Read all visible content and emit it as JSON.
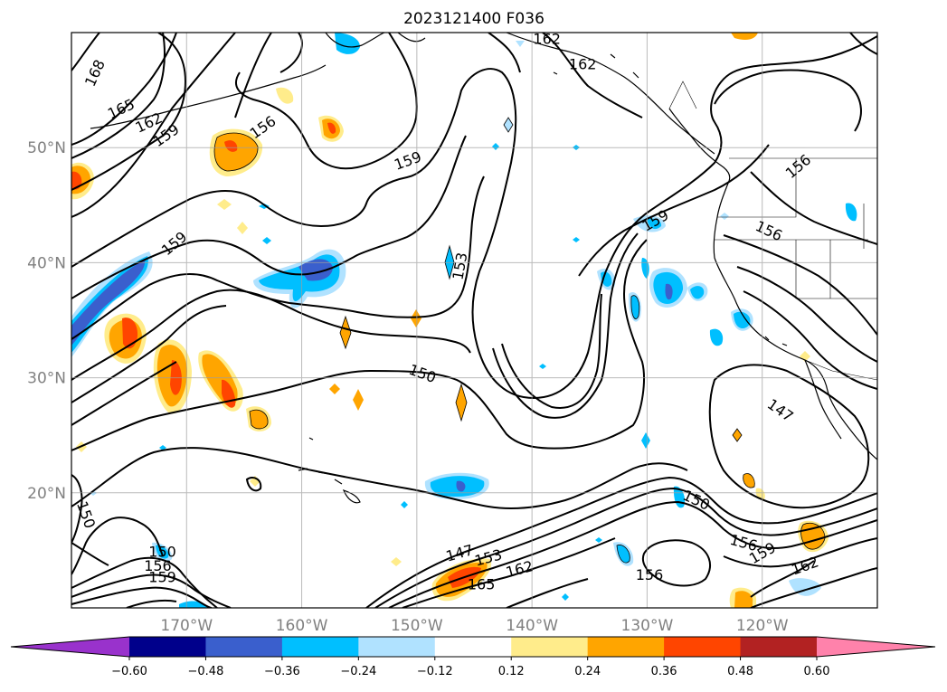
{
  "title": "2023121400 F036",
  "map": {
    "lat_labels": [
      "50°N",
      "40°N",
      "30°N",
      "20°N"
    ],
    "lon_labels": [
      "170°W",
      "160°W",
      "150°W",
      "140°W",
      "130°W",
      "120°W"
    ],
    "lat_values": [
      50,
      40,
      30,
      20
    ],
    "lon_values": [
      -170,
      -160,
      -150,
      -140,
      -130,
      -120
    ],
    "extent": {
      "lon_min": -180,
      "lon_max": -110,
      "lat_min": 10,
      "lat_max": 60
    },
    "gridlines": true
  },
  "contours": {
    "line_color": "#000000",
    "labels": [
      {
        "text": "168",
        "lon": -178,
        "lat": 56.5,
        "rot": -65
      },
      {
        "text": "165",
        "lon": -175.7,
        "lat": 53.4,
        "rot": -25
      },
      {
        "text": "162",
        "lon": -173.3,
        "lat": 52.2,
        "rot": -25
      },
      {
        "text": "159",
        "lon": -171.8,
        "lat": 51.1,
        "rot": -35
      },
      {
        "text": "156",
        "lon": -163.4,
        "lat": 51.8,
        "rot": -35
      },
      {
        "text": "159",
        "lon": -150.8,
        "lat": 48.9,
        "rot": -20
      },
      {
        "text": "162",
        "lon": -138.7,
        "lat": 59.5,
        "rot": 0
      },
      {
        "text": "162",
        "lon": -135.6,
        "lat": 57.3,
        "rot": 0
      },
      {
        "text": "156",
        "lon": -116.9,
        "lat": 48.4,
        "rot": -40
      },
      {
        "text": "159",
        "lon": -129.3,
        "lat": 43.7,
        "rot": -30
      },
      {
        "text": "156",
        "lon": -119.4,
        "lat": 42.8,
        "rot": 25
      },
      {
        "text": "159",
        "lon": -171.1,
        "lat": 41.7,
        "rot": -40
      },
      {
        "text": "153",
        "lon": -146.3,
        "lat": 39.7,
        "rot": -80
      },
      {
        "text": "150",
        "lon": -149.5,
        "lat": 30.4,
        "rot": 20
      },
      {
        "text": "147",
        "lon": -118.4,
        "lat": 27.2,
        "rot": 35
      },
      {
        "text": "150",
        "lon": -178.7,
        "lat": 18.1,
        "rot": 70
      },
      {
        "text": "150",
        "lon": -125.7,
        "lat": 19.4,
        "rot": 25
      },
      {
        "text": "156",
        "lon": -121.6,
        "lat": 15.7,
        "rot": 15
      },
      {
        "text": "159",
        "lon": -120,
        "lat": 14.8,
        "rot": -30
      },
      {
        "text": "162",
        "lon": -116.3,
        "lat": 13.7,
        "rot": -20
      },
      {
        "text": "147",
        "lon": -146.3,
        "lat": 14.8,
        "rot": -15
      },
      {
        "text": "153",
        "lon": -143.8,
        "lat": 14.4,
        "rot": -15
      },
      {
        "text": "162",
        "lon": -141.1,
        "lat": 13.4,
        "rot": -15
      },
      {
        "text": "165",
        "lon": -144.4,
        "lat": 12.1,
        "rot": 0
      },
      {
        "text": "156",
        "lon": -129.8,
        "lat": 12.9,
        "rot": 0
      },
      {
        "text": "150",
        "lon": -172.1,
        "lat": 14.9,
        "rot": 0
      },
      {
        "text": "156",
        "lon": -172.5,
        "lat": 13.7,
        "rot": 0
      },
      {
        "text": "159",
        "lon": -172.1,
        "lat": 12.7,
        "rot": 0
      }
    ]
  },
  "colorbar": {
    "bounds": [
      -0.72,
      -0.6,
      -0.48,
      -0.36,
      -0.24,
      -0.12,
      0.12,
      0.24,
      0.36,
      0.48,
      0.6,
      0.72
    ],
    "tick_labels": [
      "−0.60",
      "−0.48",
      "−0.36",
      "−0.24",
      "−0.12",
      "0.12",
      "0.24",
      "0.36",
      "0.48",
      "0.60"
    ],
    "colors": [
      "#9932cc",
      "#00008b",
      "#3a5fcd",
      "#00bfff",
      "#b0e2ff",
      "#ffffff",
      "#ffec8b",
      "#ffa500",
      "#ff4500",
      "#b22222",
      "#ff82ab"
    ],
    "extend": "both"
  },
  "fill_levels": {
    "-0.60": "#00008b",
    "-0.48": "#3a5fcd",
    "-0.36": "#00bfff",
    "-0.24": "#b0e2ff",
    "0.24": "#ffec8b",
    "0.36": "#ffa500",
    "0.48": "#ff4500",
    "0.60": "#b22222"
  }
}
